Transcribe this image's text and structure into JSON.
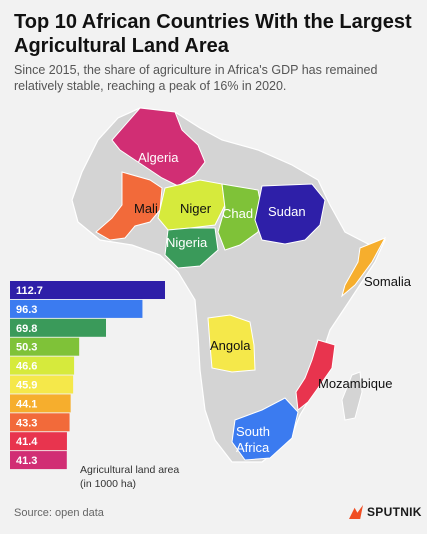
{
  "header": {
    "title": "Top 10 African Countries With the Largest Agricultural Land Area",
    "subtitle": "Since 2015, the share of agriculture in Africa's GDP has remained relatively stable, reaching a peak of 16% in 2020."
  },
  "legend_note": {
    "line1": "Agricultural land area",
    "line2": "(in 1000 ha)"
  },
  "footer": {
    "source": "Source: open data",
    "brand": "SPUTNIK"
  },
  "chart_data": {
    "type": "bar",
    "title": "Top 10 African Countries With the Largest Agricultural Land Area",
    "orientation": "horizontal",
    "unit": "in 1000 ha",
    "values": [
      112.7,
      96.3,
      69.8,
      50.3,
      46.6,
      45.9,
      44.1,
      43.3,
      41.4,
      41.3
    ],
    "colors": [
      "#2e1fa8",
      "#3b7bf0",
      "#3a9a5a",
      "#7fc238",
      "#d6ea3c",
      "#f5e84a",
      "#f6ae2d",
      "#f26a3a",
      "#e8344e",
      "#d12e74"
    ],
    "xlim": [
      0,
      120
    ],
    "map_labels": [
      "Algeria",
      "Mali",
      "Niger",
      "Chad",
      "Sudan",
      "Nigeria",
      "Somalia",
      "Angola",
      "Mozambique",
      "South Africa"
    ],
    "map_colors": {
      "Algeria": "#d12e74",
      "Mali": "#f26a3a",
      "Niger": "#d6ea3c",
      "Chad": "#7fc238",
      "Sudan": "#2e1fa8",
      "Nigeria": "#3a9a5a",
      "Somalia": "#f6ae2d",
      "Angola": "#f5e84a",
      "Mozambique": "#e8344e",
      "South Africa": "#3b7bf0"
    }
  }
}
